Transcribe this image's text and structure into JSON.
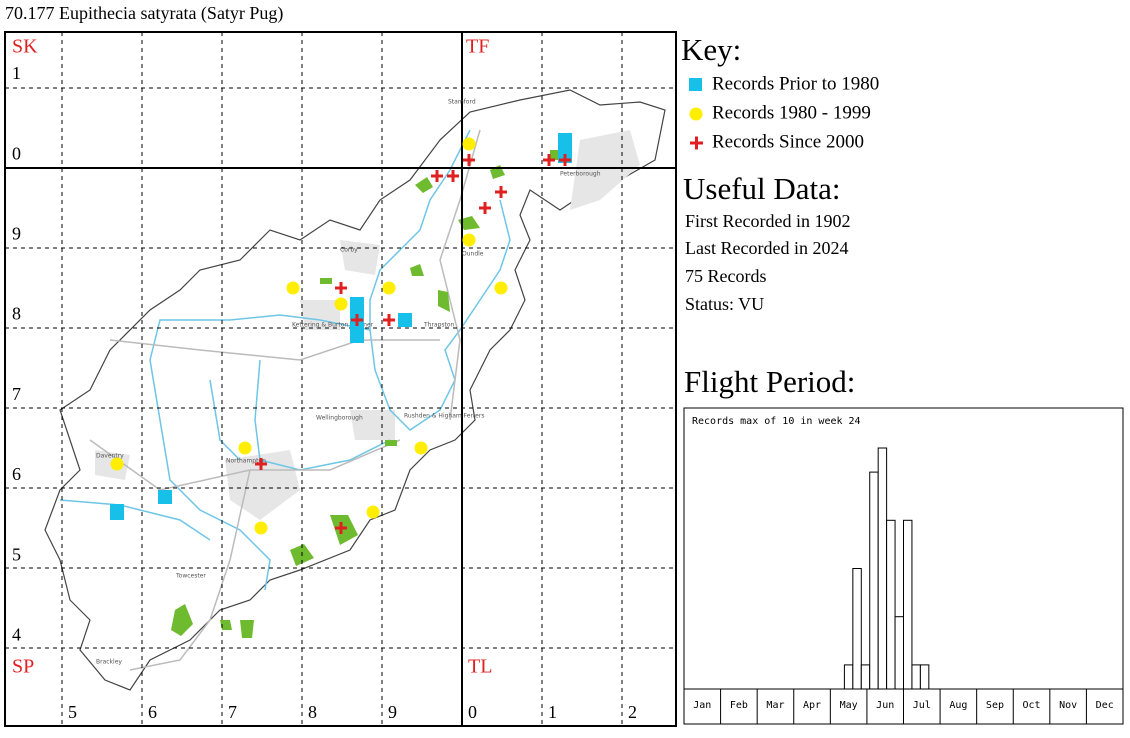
{
  "title": "70.177 Eupithecia satyrata (Satyr Pug)",
  "map": {
    "squares": [
      "SK",
      "TF",
      "SP",
      "TL"
    ],
    "left_labels": [
      "1",
      "0",
      "9",
      "8",
      "7",
      "6",
      "5",
      "4"
    ],
    "bottom_labels": [
      "5",
      "6",
      "7",
      "8",
      "9",
      "0",
      "1",
      "2"
    ],
    "places": [
      "Stamford",
      "Peterborough",
      "Oundle",
      "Corby",
      "Kettering & Burton Latimer",
      "Thrapston",
      "Wellingborough",
      "Rushden & Higham Ferrers",
      "Daventry",
      "Northampton",
      "Towcester",
      "Brackley"
    ]
  },
  "key": {
    "title": "Key:",
    "items": [
      "Records Prior to 1980",
      "Records 1980 - 1999",
      "Records Since 2000"
    ]
  },
  "useful_data": {
    "title": "Useful Data:",
    "lines": [
      "First Recorded in 1902",
      "Last Recorded in 2024",
      "75 Records",
      "Status: VU"
    ]
  },
  "chart_data": {
    "type": "bar",
    "title": "Flight Period:",
    "annotation": "Records max of 10 in week 24",
    "months": [
      "Jan",
      "Feb",
      "Mar",
      "Apr",
      "May",
      "Jun",
      "Jul",
      "Aug",
      "Sep",
      "Oct",
      "Nov",
      "Dec"
    ],
    "x": [
      20,
      21,
      22,
      23,
      24,
      25,
      26,
      27,
      28,
      29
    ],
    "values": [
      1,
      5,
      1,
      9,
      10,
      7,
      3,
      7,
      1,
      1
    ],
    "xlim": [
      1,
      53
    ],
    "ylim": [
      0,
      10
    ]
  }
}
